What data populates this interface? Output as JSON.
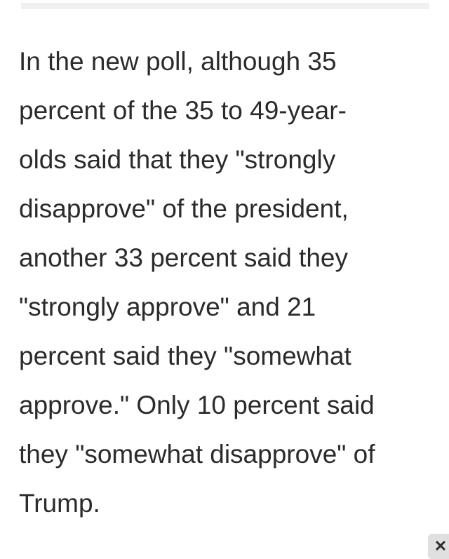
{
  "colors": {
    "page_bg": "#ffffff",
    "bar": "#f0f0f0",
    "text": "#2b2b2b",
    "button_bg": "#e0e0e0",
    "icon": "#2f2f2f"
  },
  "article": {
    "paragraph": "In the new poll, although 35 percent of the 35 to 49-year-olds said that they \"strongly disapprove\" of the president, another 33 percent said they \"strongly approve\" and 21 percent said they \"somewhat approve.\" Only 10 percent said they \"somewhat disapprove\" of Trump.",
    "lines": [
      "In the new poll, although 35",
      "percent of the 35 to 49-year-",
      "olds said that they \"strongly",
      "disapprove\" of the president,",
      "another 33 percent said they",
      "\"strongly approve\" and 21",
      "percent said they \"somewhat",
      "approve.\" Only 10 percent said",
      "they \"somewhat disapprove\" of",
      "Trump."
    ]
  },
  "ad_close_button": {
    "icon": "✕"
  }
}
